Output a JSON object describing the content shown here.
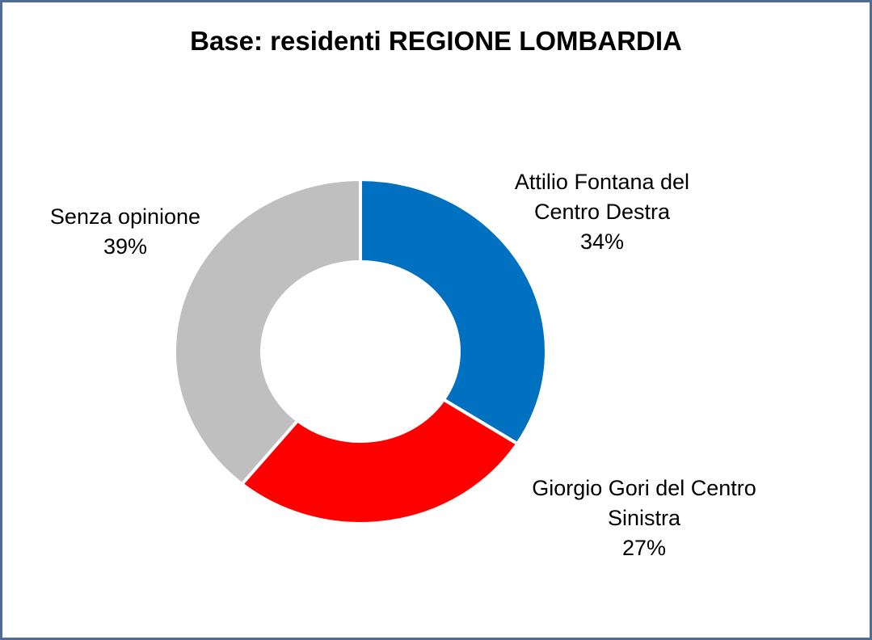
{
  "chart_data": {
    "type": "donut",
    "title": "Base: residenti REGIONE LOMBARDIA",
    "categories": [
      "Attilio Fontana del Centro Destra",
      "Giorgio Gori del Centro Sinistra",
      "Senza opinione"
    ],
    "values": [
      34,
      27,
      39
    ],
    "value_labels": [
      "34%",
      "27%",
      "39%"
    ],
    "colors": [
      "#0070c0",
      "#ff0000",
      "#bfbfbf"
    ]
  }
}
